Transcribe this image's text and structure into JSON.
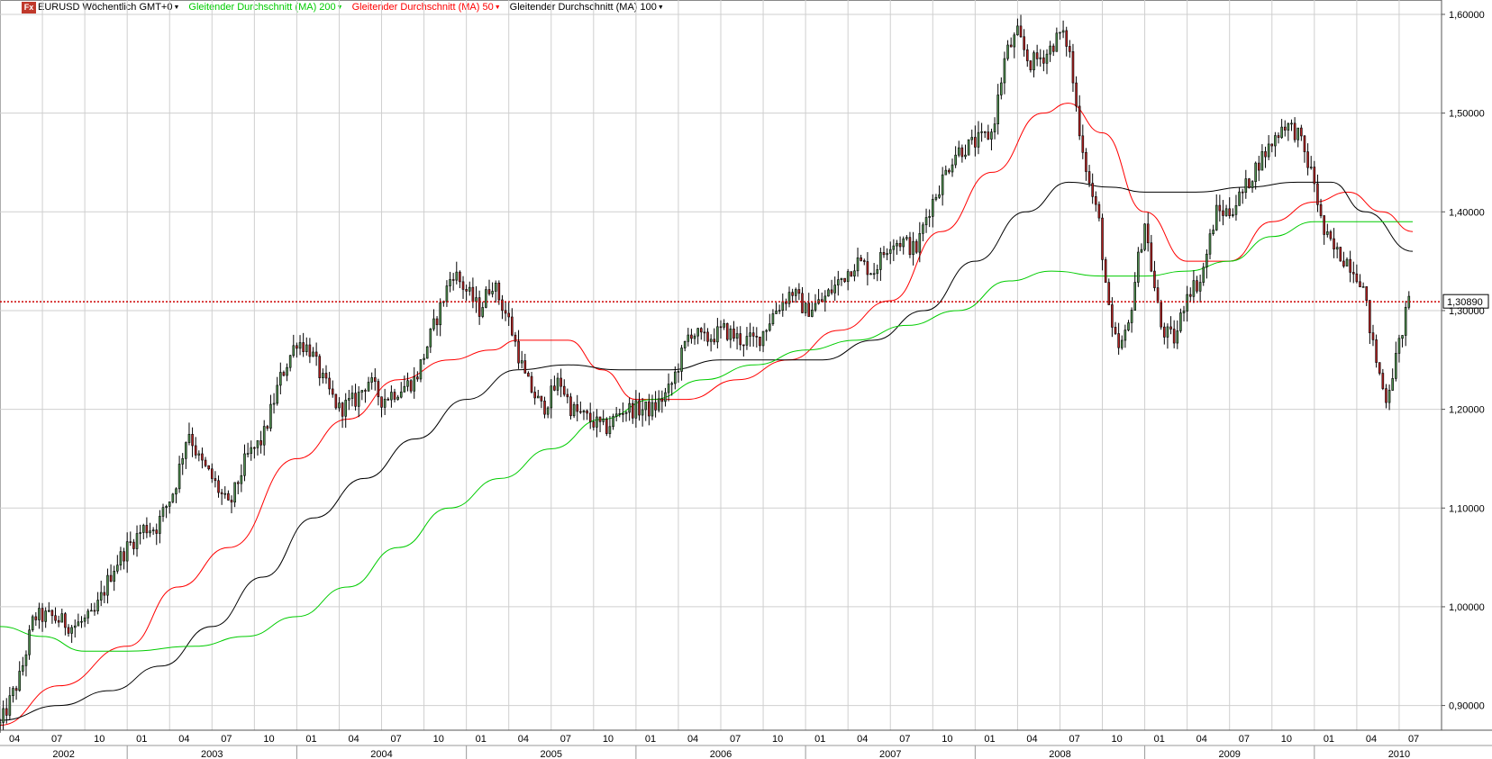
{
  "window": {
    "logo": "Fx",
    "symbol_label": "EURUSD Wöchentlich GMT+0",
    "indicators": [
      {
        "label": "Gleitender Durchschnitt (MA) 200",
        "color": "#00cc00"
      },
      {
        "label": "Gleitender Durchschnitt (MA) 50",
        "color": "#ff0000"
      },
      {
        "label": "Gleitender Durchschnitt (MA) 100",
        "color": "#000000"
      }
    ]
  },
  "chart_data": {
    "type": "candlestick",
    "title": "EURUSD Wöchentlich GMT+0",
    "ylim": [
      0.875,
      1.61
    ],
    "y_ticks": [
      "0,90000",
      "1,00000",
      "1,10000",
      "1,20000",
      "1,30000",
      "1,40000",
      "1,50000",
      "1,60000"
    ],
    "y_tick_values": [
      0.9,
      1.0,
      1.1,
      1.2,
      1.3,
      1.4,
      1.5,
      1.6
    ],
    "x_start": 2002.25,
    "x_end": 2010.75,
    "month_ticks": [
      "04",
      "07",
      "10",
      "01",
      "04",
      "07",
      "10",
      "01",
      "04",
      "07",
      "10",
      "01",
      "04",
      "07",
      "10",
      "01",
      "04",
      "07",
      "10",
      "01",
      "04",
      "07",
      "10",
      "01",
      "04",
      "07",
      "10",
      "01",
      "04",
      "07",
      "10",
      "01",
      "04",
      "07"
    ],
    "month_tick_dates": [
      2002.25,
      2002.5,
      2002.75,
      2003.0,
      2003.25,
      2003.5,
      2003.75,
      2004.0,
      2004.25,
      2004.5,
      2004.75,
      2005.0,
      2005.25,
      2005.5,
      2005.75,
      2006.0,
      2006.25,
      2006.5,
      2006.75,
      2007.0,
      2007.25,
      2007.5,
      2007.75,
      2008.0,
      2008.25,
      2008.5,
      2008.75,
      2009.0,
      2009.25,
      2009.5,
      2009.75,
      2010.0,
      2010.25,
      2010.5
    ],
    "year_labels": [
      "2002",
      "2003",
      "2004",
      "2005",
      "2006",
      "2007",
      "2008",
      "2009",
      "2010"
    ],
    "year_label_dates": [
      2002.5,
      2003.5,
      2004.5,
      2005.5,
      2006.5,
      2007.5,
      2008.5,
      2009.5,
      2010.5
    ],
    "current_price": 1.3089,
    "current_price_label": "1,30890",
    "price_anchors": [
      [
        2002.25,
        0.88
      ],
      [
        2002.37,
        0.93
      ],
      [
        2002.45,
        0.99
      ],
      [
        2002.55,
        0.99
      ],
      [
        2002.68,
        0.98
      ],
      [
        2002.8,
        0.99
      ],
      [
        2002.92,
        1.04
      ],
      [
        2003.0,
        1.06
      ],
      [
        2003.1,
        1.08
      ],
      [
        2003.17,
        1.08
      ],
      [
        2003.28,
        1.12
      ],
      [
        2003.36,
        1.18
      ],
      [
        2003.42,
        1.15
      ],
      [
        2003.5,
        1.13
      ],
      [
        2003.6,
        1.1
      ],
      [
        2003.7,
        1.15
      ],
      [
        2003.8,
        1.17
      ],
      [
        2003.9,
        1.23
      ],
      [
        2004.0,
        1.27
      ],
      [
        2004.08,
        1.26
      ],
      [
        2004.15,
        1.23
      ],
      [
        2004.25,
        1.2
      ],
      [
        2004.35,
        1.21
      ],
      [
        2004.42,
        1.23
      ],
      [
        2004.5,
        1.21
      ],
      [
        2004.6,
        1.22
      ],
      [
        2004.7,
        1.23
      ],
      [
        2004.8,
        1.28
      ],
      [
        2004.92,
        1.34
      ],
      [
        2005.0,
        1.32
      ],
      [
        2005.08,
        1.3
      ],
      [
        2005.15,
        1.33
      ],
      [
        2005.25,
        1.29
      ],
      [
        2005.35,
        1.23
      ],
      [
        2005.45,
        1.2
      ],
      [
        2005.55,
        1.23
      ],
      [
        2005.62,
        1.2
      ],
      [
        2005.72,
        1.19
      ],
      [
        2005.82,
        1.18
      ],
      [
        2005.92,
        1.2
      ],
      [
        2006.0,
        1.2
      ],
      [
        2006.1,
        1.2
      ],
      [
        2006.2,
        1.22
      ],
      [
        2006.32,
        1.28
      ],
      [
        2006.4,
        1.27
      ],
      [
        2006.52,
        1.28
      ],
      [
        2006.62,
        1.27
      ],
      [
        2006.72,
        1.27
      ],
      [
        2006.82,
        1.3
      ],
      [
        2006.92,
        1.32
      ],
      [
        2007.0,
        1.3
      ],
      [
        2007.1,
        1.31
      ],
      [
        2007.2,
        1.33
      ],
      [
        2007.3,
        1.35
      ],
      [
        2007.4,
        1.34
      ],
      [
        2007.5,
        1.37
      ],
      [
        2007.58,
        1.37
      ],
      [
        2007.65,
        1.36
      ],
      [
        2007.72,
        1.4
      ],
      [
        2007.8,
        1.43
      ],
      [
        2007.88,
        1.46
      ],
      [
        2008.0,
        1.47
      ],
      [
        2008.1,
        1.48
      ],
      [
        2008.18,
        1.56
      ],
      [
        2008.25,
        1.58
      ],
      [
        2008.32,
        1.55
      ],
      [
        2008.42,
        1.56
      ],
      [
        2008.5,
        1.58
      ],
      [
        2008.55,
        1.57
      ],
      [
        2008.6,
        1.5
      ],
      [
        2008.67,
        1.43
      ],
      [
        2008.73,
        1.39
      ],
      [
        2008.8,
        1.28
      ],
      [
        2008.85,
        1.26
      ],
      [
        2008.9,
        1.28
      ],
      [
        2008.95,
        1.34
      ],
      [
        2009.0,
        1.39
      ],
      [
        2009.05,
        1.33
      ],
      [
        2009.1,
        1.28
      ],
      [
        2009.18,
        1.27
      ],
      [
        2009.25,
        1.32
      ],
      [
        2009.33,
        1.33
      ],
      [
        2009.42,
        1.4
      ],
      [
        2009.5,
        1.4
      ],
      [
        2009.58,
        1.42
      ],
      [
        2009.67,
        1.45
      ],
      [
        2009.75,
        1.47
      ],
      [
        2009.82,
        1.49
      ],
      [
        2009.9,
        1.48
      ],
      [
        2010.0,
        1.43
      ],
      [
        2010.05,
        1.38
      ],
      [
        2010.12,
        1.36
      ],
      [
        2010.2,
        1.35
      ],
      [
        2010.28,
        1.33
      ],
      [
        2010.35,
        1.26
      ],
      [
        2010.42,
        1.21
      ],
      [
        2010.48,
        1.25
      ],
      [
        2010.53,
        1.29
      ],
      [
        2010.56,
        1.31
      ]
    ],
    "series": [
      {
        "name": "Gleitender Durchschnitt (MA) 50",
        "color": "#ff0000",
        "points": [
          [
            2002.25,
            0.88
          ],
          [
            2002.6,
            0.92
          ],
          [
            2003.0,
            0.96
          ],
          [
            2003.3,
            1.02
          ],
          [
            2003.6,
            1.06
          ],
          [
            2004.0,
            1.15
          ],
          [
            2004.3,
            1.19
          ],
          [
            2004.6,
            1.23
          ],
          [
            2004.9,
            1.25
          ],
          [
            2005.15,
            1.26
          ],
          [
            2005.3,
            1.27
          ],
          [
            2005.6,
            1.27
          ],
          [
            2005.8,
            1.24
          ],
          [
            2006.0,
            1.21
          ],
          [
            2006.3,
            1.21
          ],
          [
            2006.6,
            1.23
          ],
          [
            2006.9,
            1.25
          ],
          [
            2007.2,
            1.28
          ],
          [
            2007.5,
            1.31
          ],
          [
            2007.8,
            1.38
          ],
          [
            2008.1,
            1.44
          ],
          [
            2008.4,
            1.5
          ],
          [
            2008.55,
            1.51
          ],
          [
            2008.75,
            1.48
          ],
          [
            2009.0,
            1.4
          ],
          [
            2009.25,
            1.35
          ],
          [
            2009.5,
            1.35
          ],
          [
            2009.75,
            1.39
          ],
          [
            2010.0,
            1.41
          ],
          [
            2010.2,
            1.42
          ],
          [
            2010.4,
            1.4
          ],
          [
            2010.58,
            1.38
          ]
        ]
      },
      {
        "name": "Gleitender Durchschnitt (MA) 100",
        "color": "#000000",
        "points": [
          [
            2002.25,
            0.885
          ],
          [
            2002.6,
            0.9
          ],
          [
            2002.9,
            0.915
          ],
          [
            2003.2,
            0.94
          ],
          [
            2003.5,
            0.98
          ],
          [
            2003.8,
            1.03
          ],
          [
            2004.1,
            1.09
          ],
          [
            2004.4,
            1.13
          ],
          [
            2004.7,
            1.17
          ],
          [
            2005.0,
            1.21
          ],
          [
            2005.3,
            1.24
          ],
          [
            2005.6,
            1.245
          ],
          [
            2005.9,
            1.24
          ],
          [
            2006.2,
            1.24
          ],
          [
            2006.5,
            1.25
          ],
          [
            2006.8,
            1.25
          ],
          [
            2007.1,
            1.25
          ],
          [
            2007.4,
            1.27
          ],
          [
            2007.7,
            1.3
          ],
          [
            2008.0,
            1.35
          ],
          [
            2008.3,
            1.4
          ],
          [
            2008.55,
            1.43
          ],
          [
            2008.8,
            1.425
          ],
          [
            2009.0,
            1.42
          ],
          [
            2009.3,
            1.42
          ],
          [
            2009.6,
            1.425
          ],
          [
            2009.9,
            1.43
          ],
          [
            2010.1,
            1.43
          ],
          [
            2010.3,
            1.4
          ],
          [
            2010.58,
            1.36
          ]
        ]
      },
      {
        "name": "Gleitender Durchschnitt (MA) 200",
        "color": "#00cc00",
        "points": [
          [
            2002.25,
            0.98
          ],
          [
            2002.5,
            0.97
          ],
          [
            2002.75,
            0.955
          ],
          [
            2003.0,
            0.955
          ],
          [
            2003.4,
            0.96
          ],
          [
            2003.7,
            0.97
          ],
          [
            2004.0,
            0.99
          ],
          [
            2004.3,
            1.02
          ],
          [
            2004.6,
            1.06
          ],
          [
            2004.9,
            1.1
          ],
          [
            2005.2,
            1.13
          ],
          [
            2005.5,
            1.16
          ],
          [
            2005.8,
            1.19
          ],
          [
            2006.1,
            1.21
          ],
          [
            2006.4,
            1.23
          ],
          [
            2006.7,
            1.245
          ],
          [
            2007.0,
            1.26
          ],
          [
            2007.3,
            1.27
          ],
          [
            2007.6,
            1.285
          ],
          [
            2007.9,
            1.3
          ],
          [
            2008.2,
            1.33
          ],
          [
            2008.45,
            1.34
          ],
          [
            2008.75,
            1.335
          ],
          [
            2009.0,
            1.335
          ],
          [
            2009.25,
            1.34
          ],
          [
            2009.5,
            1.35
          ],
          [
            2009.75,
            1.375
          ],
          [
            2010.0,
            1.39
          ],
          [
            2010.25,
            1.39
          ],
          [
            2010.58,
            1.39
          ]
        ]
      }
    ]
  }
}
